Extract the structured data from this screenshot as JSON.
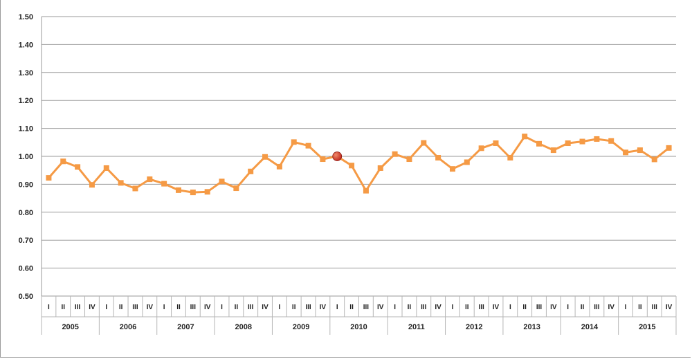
{
  "chart_data": {
    "type": "line",
    "title": "",
    "xlabel": "",
    "ylabel": "",
    "ylim": [
      0.5,
      1.5
    ],
    "yticks": [
      "0.50",
      "0.60",
      "0.70",
      "0.80",
      "0.90",
      "1.00",
      "1.10",
      "1.20",
      "1.30",
      "1.40",
      "1.50"
    ],
    "quarters": [
      "I",
      "II",
      "III",
      "IV"
    ],
    "years": [
      "2005",
      "2006",
      "2007",
      "2008",
      "2009",
      "2010",
      "2011",
      "2012",
      "2013",
      "2014",
      "2015"
    ],
    "grid": true,
    "legend": "none",
    "series": [
      {
        "color": "#f59a45",
        "marker": "square",
        "values": [
          0.923,
          0.982,
          0.962,
          0.898,
          0.958,
          0.905,
          0.885,
          0.918,
          0.902,
          0.879,
          0.871,
          0.873,
          0.91,
          0.886,
          0.946,
          0.998,
          0.963,
          1.051,
          1.038,
          0.99,
          1.0,
          0.967,
          0.877,
          0.958,
          1.008,
          0.99,
          1.048,
          0.995,
          0.955,
          0.979,
          1.029,
          1.047,
          0.995,
          1.071,
          1.045,
          1.022,
          1.047,
          1.053,
          1.062,
          1.055,
          1.014,
          1.022,
          0.989,
          1.03
        ]
      }
    ],
    "highlight": {
      "year": "2010",
      "quarter": "I",
      "value": 1.0,
      "color": "#c0281e"
    }
  }
}
